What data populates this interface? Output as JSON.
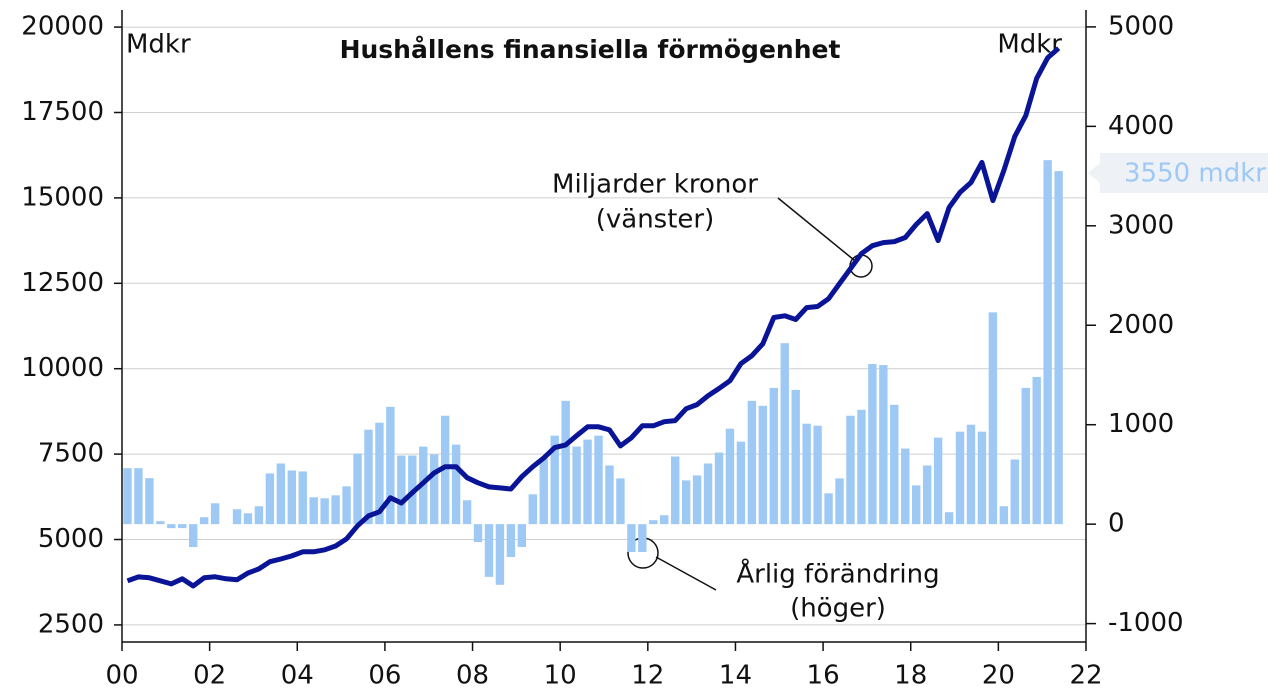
{
  "chart_data": {
    "type": "combo",
    "title": "Hushållens finansiella förmögenhet",
    "ylabel": "Mdkr",
    "y2label": "Mdkr",
    "annotations": [
      {
        "lines": [
          "Miljarder kronor",
          "(vänster)"
        ]
      },
      {
        "lines": [
          "Årlig förändring",
          "(höger)"
        ]
      }
    ],
    "callout": "3550 mdkr",
    "xlim": [
      2000,
      2022
    ],
    "xticks": [
      {
        "value": 2000,
        "label": "00"
      },
      {
        "value": 2002,
        "label": "02"
      },
      {
        "value": 2004,
        "label": "04"
      },
      {
        "value": 2006,
        "label": "06"
      },
      {
        "value": 2008,
        "label": "08"
      },
      {
        "value": 2010,
        "label": "10"
      },
      {
        "value": 2012,
        "label": "12"
      },
      {
        "value": 2014,
        "label": "14"
      },
      {
        "value": 2016,
        "label": "16"
      },
      {
        "value": 2018,
        "label": "18"
      },
      {
        "value": 2020,
        "label": "20"
      },
      {
        "value": 2022,
        "label": "22"
      }
    ],
    "ylim": [
      2000,
      20500
    ],
    "yticks": [
      2500,
      5000,
      7500,
      10000,
      12500,
      15000,
      17500,
      20000
    ],
    "y2lim": [
      -1185,
      5170
    ],
    "y2ticks": [
      -1000,
      0,
      1000,
      2000,
      3000,
      4000,
      5000
    ],
    "grid": true,
    "x": [
      2000.125,
      2000.375,
      2000.625,
      2000.875,
      2001.125,
      2001.375,
      2001.625,
      2001.875,
      2002.125,
      2002.375,
      2002.625,
      2002.875,
      2003.125,
      2003.375,
      2003.625,
      2003.875,
      2004.125,
      2004.375,
      2004.625,
      2004.875,
      2005.125,
      2005.375,
      2005.625,
      2005.875,
      2006.125,
      2006.375,
      2006.625,
      2006.875,
      2007.125,
      2007.375,
      2007.625,
      2007.875,
      2008.125,
      2008.375,
      2008.625,
      2008.875,
      2009.125,
      2009.375,
      2009.625,
      2009.875,
      2010.125,
      2010.375,
      2010.625,
      2010.875,
      2011.125,
      2011.375,
      2011.625,
      2011.875,
      2012.125,
      2012.375,
      2012.625,
      2012.875,
      2013.125,
      2013.375,
      2013.625,
      2013.875,
      2014.125,
      2014.375,
      2014.625,
      2014.875,
      2015.125,
      2015.375,
      2015.625,
      2015.875,
      2016.125,
      2016.375,
      2016.625,
      2016.875,
      2017.125,
      2017.375,
      2017.625,
      2017.875,
      2018.125,
      2018.375,
      2018.625,
      2018.875,
      2019.125,
      2019.375,
      2019.625,
      2019.875,
      2020.125,
      2020.375,
      2020.625,
      2020.875,
      2021.125,
      2021.375
    ],
    "series": [
      {
        "name": "Årlig förändring",
        "type": "bar",
        "axis": "y2",
        "color": "#9ec9f5",
        "values": [
          563,
          563,
          463,
          30,
          -40,
          -40,
          -230,
          70,
          210,
          0,
          150,
          110,
          180,
          510,
          610,
          540,
          530,
          270,
          260,
          290,
          380,
          710,
          950,
          1020,
          1180,
          690,
          690,
          780,
          700,
          1090,
          800,
          240,
          -180,
          -530,
          -610,
          -330,
          -230,
          300,
          660,
          890,
          1240,
          780,
          850,
          890,
          590,
          460,
          -280,
          -280,
          40,
          90,
          680,
          440,
          490,
          610,
          720,
          960,
          830,
          1240,
          1190,
          1370,
          1820,
          1350,
          1010,
          990,
          310,
          460,
          1090,
          1150,
          1610,
          1600,
          1200,
          760,
          390,
          590,
          870,
          120,
          930,
          1000,
          930,
          2130,
          180,
          650,
          1370,
          1480,
          3660,
          3550
        ]
      },
      {
        "name": "Miljarder kronor",
        "type": "line",
        "color": "#0a1496",
        "values": [
          3790,
          3906,
          3880,
          3790,
          3700,
          3850,
          3640,
          3880,
          3910,
          3850,
          3820,
          4020,
          4140,
          4350,
          4430,
          4520,
          4640,
          4640,
          4700,
          4810,
          5020,
          5400,
          5690,
          5810,
          6220,
          6070,
          6370,
          6660,
          6950,
          7130,
          7130,
          6810,
          6660,
          6540,
          6510,
          6480,
          6840,
          7130,
          7390,
          7690,
          7770,
          8040,
          8300,
          8300,
          8210,
          7740,
          7980,
          8330,
          8330,
          8450,
          8480,
          8830,
          8950,
          9210,
          9420,
          9650,
          10150,
          10380,
          10730,
          11500,
          11550,
          11440,
          11790,
          11820,
          12050,
          12490,
          12930,
          13370,
          13600,
          13690,
          13720,
          13840,
          14220,
          14540,
          13750,
          14720,
          15160,
          15450,
          16040,
          14920,
          15800,
          16800,
          17410,
          18500,
          19100,
          19380
        ]
      }
    ]
  }
}
